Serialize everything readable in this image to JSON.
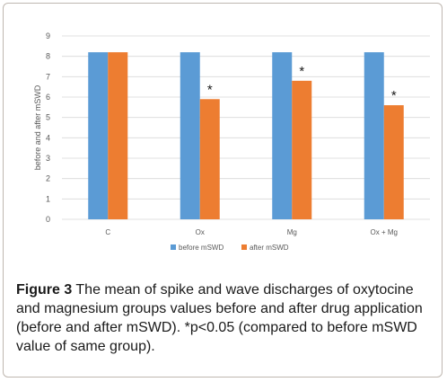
{
  "chart_data": {
    "type": "bar",
    "categories": [
      "C",
      "Ox",
      "Mg",
      "Ox + Mg"
    ],
    "series": [
      {
        "name": "before mSWD",
        "values": [
          8.2,
          8.2,
          8.2,
          8.2
        ],
        "color": "#5b9bd5"
      },
      {
        "name": "after mSWD",
        "values": [
          8.2,
          5.9,
          6.8,
          5.6
        ],
        "color": "#ed7d31"
      }
    ],
    "annotations": [
      "",
      "*",
      "*",
      "*"
    ],
    "ylabel": "before and after mSWD",
    "xlabel": "",
    "ylim": [
      0,
      9
    ],
    "yticks": [
      0,
      1,
      2,
      3,
      4,
      5,
      6,
      7,
      8,
      9
    ],
    "grid": true,
    "legend_position": "bottom"
  },
  "caption": {
    "label": "Figure 3",
    "text": " The mean of spike and wave discharges of oxytocine and magnesium groups values before and after drug application (before and after mSWD). *p<0.05 (compared to before mSWD value of same group)."
  }
}
